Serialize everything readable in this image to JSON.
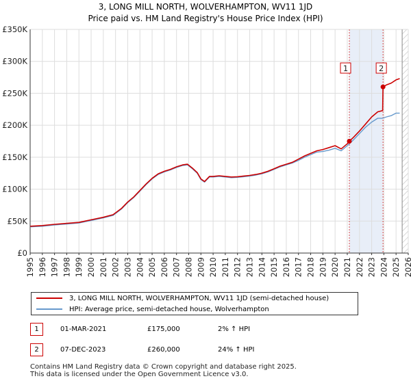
{
  "title_line1": "3, LONG MILL NORTH, WOLVERHAMPTON, WV11 1JD",
  "title_line2": "Price paid vs. HM Land Registry's House Price Index (HPI)",
  "chart_data": {
    "type": "line",
    "title": "3, LONG MILL NORTH, WOLVERHAMPTON, WV11 1JD — Price paid vs. HM Land Registry's House Price Index (HPI)",
    "xlabel": "",
    "ylabel": "",
    "xlim": [
      1995,
      2026
    ],
    "ylim": [
      0,
      350000
    ],
    "y_ticks": [
      {
        "value": 0,
        "label": "£0"
      },
      {
        "value": 50000,
        "label": "£50K"
      },
      {
        "value": 100000,
        "label": "£100K"
      },
      {
        "value": 150000,
        "label": "£150K"
      },
      {
        "value": 200000,
        "label": "£200K"
      },
      {
        "value": 250000,
        "label": "£250K"
      },
      {
        "value": 300000,
        "label": "£300K"
      },
      {
        "value": 350000,
        "label": "£350K"
      }
    ],
    "x_ticks": [
      "1995",
      "1996",
      "1997",
      "1998",
      "1999",
      "2000",
      "2001",
      "2002",
      "2003",
      "2004",
      "2005",
      "2006",
      "2007",
      "2008",
      "2009",
      "2010",
      "2011",
      "2012",
      "2013",
      "2014",
      "2015",
      "2016",
      "2017",
      "2018",
      "2019",
      "2020",
      "2021",
      "2022",
      "2023",
      "2024",
      "2025",
      "2026"
    ],
    "grid": true,
    "colors": {
      "property": "#cc0000",
      "hpi": "#6699cc",
      "highlight": "#e8eef8",
      "marker_line": "#cc0000",
      "future_hatch": "#888888"
    },
    "series": [
      {
        "name": "3, LONG MILL NORTH, WOLVERHAMPTON, WV11 1JD (semi-detached house)",
        "x": [
          1995.0,
          1996.0,
          1997.0,
          1998.0,
          1999.0,
          2000.0,
          2001.0,
          2001.8,
          2002.5,
          2003.0,
          2003.5,
          2004.0,
          2004.5,
          2005.0,
          2005.5,
          2006.0,
          2006.5,
          2007.0,
          2007.5,
          2007.9,
          2008.3,
          2008.7,
          2009.0,
          2009.3,
          2009.7,
          2010.0,
          2010.5,
          2011.0,
          2011.5,
          2012.0,
          2012.5,
          2013.0,
          2013.5,
          2014.0,
          2014.5,
          2015.0,
          2015.5,
          2016.0,
          2016.5,
          2017.0,
          2017.5,
          2018.0,
          2018.5,
          2019.0,
          2019.5,
          2020.0,
          2020.5,
          2021.0,
          2021.17,
          2021.5,
          2022.0,
          2022.5,
          2023.0,
          2023.5,
          2023.9,
          2023.93,
          2024.2,
          2024.6,
          2025.0,
          2025.3
        ],
        "y": [
          42000,
          43000,
          45000,
          46500,
          48000,
          52000,
          56000,
          60000,
          70000,
          80000,
          88000,
          98000,
          108000,
          117000,
          124000,
          128000,
          131000,
          135000,
          138000,
          139000,
          133000,
          126000,
          116000,
          112000,
          120000,
          120000,
          121000,
          120000,
          119000,
          119500,
          120500,
          121500,
          123000,
          125000,
          128000,
          132000,
          136000,
          139000,
          142000,
          147000,
          152000,
          156000,
          160000,
          162000,
          165000,
          168000,
          163000,
          171000,
          175000,
          181000,
          191000,
          202000,
          213000,
          221000,
          223000,
          260000,
          263000,
          266000,
          271000,
          273000
        ]
      },
      {
        "name": "HPI: Average price, semi-detached house, Wolverhampton",
        "x": [
          1995.0,
          1996.0,
          1997.0,
          1998.0,
          1999.0,
          2000.0,
          2001.0,
          2001.8,
          2002.5,
          2003.0,
          2003.5,
          2004.0,
          2004.5,
          2005.0,
          2005.5,
          2006.0,
          2006.5,
          2007.0,
          2007.5,
          2007.9,
          2008.3,
          2008.7,
          2009.0,
          2009.3,
          2009.7,
          2010.0,
          2010.5,
          2011.0,
          2011.5,
          2012.0,
          2012.5,
          2013.0,
          2013.5,
          2014.0,
          2014.5,
          2015.0,
          2015.5,
          2016.0,
          2016.5,
          2017.0,
          2017.5,
          2018.0,
          2018.5,
          2019.0,
          2019.5,
          2020.0,
          2020.5,
          2021.0,
          2021.17,
          2021.5,
          2022.0,
          2022.5,
          2023.0,
          2023.5,
          2023.9,
          2024.2,
          2024.6,
          2025.0,
          2025.3
        ],
        "y": [
          41000,
          42000,
          44000,
          45500,
          47000,
          51000,
          55000,
          59000,
          69000,
          79000,
          87000,
          97000,
          107000,
          116000,
          123000,
          127000,
          130000,
          134000,
          137000,
          138000,
          132000,
          125000,
          115000,
          111000,
          119000,
          119000,
          120000,
          119000,
          118000,
          118500,
          119500,
          120500,
          122000,
          124000,
          127000,
          131000,
          135000,
          138000,
          141000,
          145000,
          150000,
          154000,
          158000,
          159000,
          161000,
          164000,
          160000,
          168000,
          171000,
          177000,
          187000,
          197000,
          205000,
          211000,
          211000,
          213000,
          215000,
          219000,
          219000
        ]
      }
    ],
    "sales": [
      {
        "marker": "1",
        "date": "01-MAR-2021",
        "x": 2021.17,
        "price": 175000,
        "price_label": "£175,000",
        "hpi_label": "2% ↑ HPI"
      },
      {
        "marker": "2",
        "date": "07-DEC-2023",
        "x": 2023.93,
        "price": 260000,
        "price_label": "£260,000",
        "hpi_label": "24% ↑ HPI"
      }
    ],
    "highlight_range": [
      2021.17,
      2023.93
    ],
    "future_from": 2025.5,
    "legend_position": "bottom"
  },
  "legend": {
    "property_label": "3, LONG MILL NORTH, WOLVERHAMPTON, WV11 1JD (semi-detached house)",
    "hpi_label": "HPI: Average price, semi-detached house, Wolverhampton"
  },
  "footer_line1": "Contains HM Land Registry data © Crown copyright and database right 2025.",
  "footer_line2": "This data is licensed under the Open Government Licence v3.0."
}
